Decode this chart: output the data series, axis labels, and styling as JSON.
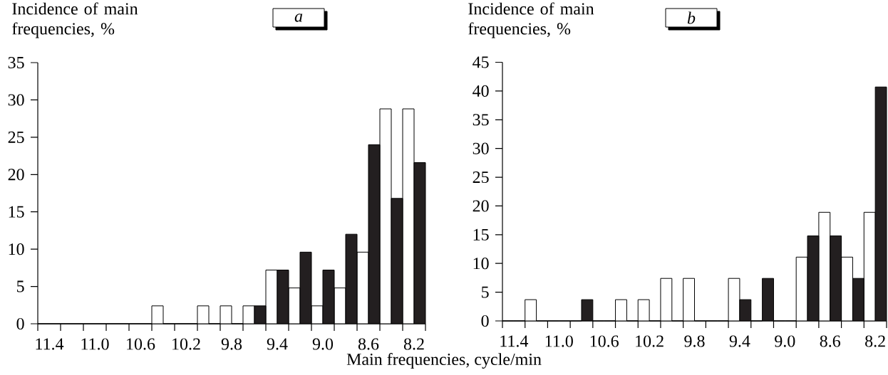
{
  "chart_data": [
    {
      "type": "bar",
      "title": "a",
      "ylabel": "Incidence of main frequencies, %",
      "xlabel": "Main frequencies, cycle/min",
      "categories": [
        "11.4",
        null,
        "11.0",
        null,
        "10.6",
        null,
        "10.2",
        null,
        "9.8",
        null,
        "9.4",
        null,
        "9.0",
        null,
        "8.6",
        null,
        "8.2"
      ],
      "series": [
        {
          "color": "#ffffff",
          "values": [
            0,
            0,
            0,
            0,
            0,
            2.4,
            0,
            2.4,
            2.4,
            2.4,
            7.2,
            4.8,
            2.4,
            4.8,
            9.6,
            28.8,
            28.8
          ]
        },
        {
          "color": "#231f20",
          "values": [
            0,
            0,
            0,
            0,
            0,
            0,
            0,
            0,
            0,
            2.4,
            7.2,
            9.6,
            7.2,
            12,
            24,
            16.8,
            21.6
          ]
        }
      ],
      "ylim": [
        0,
        35
      ],
      "yticks": [
        0,
        5,
        10,
        15,
        20,
        25,
        30,
        35
      ]
    },
    {
      "type": "bar",
      "title": "b",
      "ylabel": "Incidence of main frequencies, %",
      "categories": [
        "11.4",
        null,
        "11.0",
        null,
        "10.6",
        null,
        "10.2",
        null,
        "9.8",
        null,
        "9.4",
        null,
        "9.0",
        null,
        "8.6",
        null,
        "8.2"
      ],
      "series": [
        {
          "color": "#ffffff",
          "values": [
            0,
            3.7,
            0,
            0,
            0,
            3.7,
            3.7,
            7.4,
            7.4,
            0,
            7.4,
            0,
            0,
            11.1,
            18.9,
            11.1,
            18.9
          ]
        },
        {
          "color": "#231f20",
          "values": [
            0,
            0,
            0,
            3.7,
            0,
            0,
            0,
            0,
            0,
            0,
            3.7,
            7.4,
            0,
            14.8,
            14.8,
            7.4,
            40.7
          ]
        }
      ],
      "ylim": [
        0,
        45
      ],
      "yticks": [
        0,
        5,
        10,
        15,
        20,
        25,
        30,
        35,
        40,
        45
      ]
    }
  ]
}
